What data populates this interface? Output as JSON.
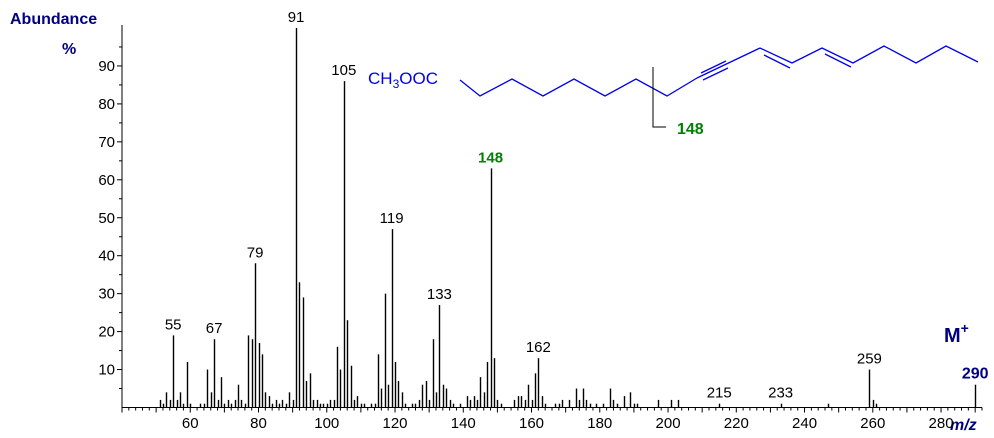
{
  "chart_data": {
    "type": "bar",
    "ylabel": "Abundance",
    "ylabel_unit": "%",
    "xlabel": "m/z",
    "xlim": [
      40,
      292
    ],
    "ylim": [
      0,
      100
    ],
    "y_ticks": [
      10,
      20,
      30,
      40,
      50,
      60,
      70,
      80,
      90
    ],
    "x_ticks": [
      60,
      80,
      100,
      120,
      140,
      160,
      180,
      200,
      220,
      240,
      260,
      280
    ],
    "colors": {
      "bars": "#000000",
      "axis_labels": "#000080",
      "highlight": "#008000",
      "structure": "#0000ee"
    },
    "peaks": [
      {
        "mz": 51,
        "rel": 2
      },
      {
        "mz": 52,
        "rel": 1
      },
      {
        "mz": 53,
        "rel": 4
      },
      {
        "mz": 54,
        "rel": 2
      },
      {
        "mz": 55,
        "rel": 19
      },
      {
        "mz": 56,
        "rel": 2
      },
      {
        "mz": 57,
        "rel": 4
      },
      {
        "mz": 58,
        "rel": 1
      },
      {
        "mz": 59,
        "rel": 12
      },
      {
        "mz": 60,
        "rel": 1
      },
      {
        "mz": 63,
        "rel": 1
      },
      {
        "mz": 64,
        "rel": 1
      },
      {
        "mz": 65,
        "rel": 10
      },
      {
        "mz": 66,
        "rel": 4
      },
      {
        "mz": 67,
        "rel": 18
      },
      {
        "mz": 68,
        "rel": 2
      },
      {
        "mz": 69,
        "rel": 8
      },
      {
        "mz": 70,
        "rel": 1
      },
      {
        "mz": 71,
        "rel": 2
      },
      {
        "mz": 72,
        "rel": 1
      },
      {
        "mz": 73,
        "rel": 2
      },
      {
        "mz": 74,
        "rel": 6
      },
      {
        "mz": 75,
        "rel": 2
      },
      {
        "mz": 76,
        "rel": 1
      },
      {
        "mz": 77,
        "rel": 19
      },
      {
        "mz": 78,
        "rel": 18
      },
      {
        "mz": 79,
        "rel": 38
      },
      {
        "mz": 80,
        "rel": 17
      },
      {
        "mz": 81,
        "rel": 14
      },
      {
        "mz": 82,
        "rel": 4
      },
      {
        "mz": 83,
        "rel": 3
      },
      {
        "mz": 84,
        "rel": 1
      },
      {
        "mz": 85,
        "rel": 2
      },
      {
        "mz": 86,
        "rel": 1
      },
      {
        "mz": 87,
        "rel": 2
      },
      {
        "mz": 88,
        "rel": 1
      },
      {
        "mz": 89,
        "rel": 4
      },
      {
        "mz": 90,
        "rel": 2
      },
      {
        "mz": 91,
        "rel": 100
      },
      {
        "mz": 92,
        "rel": 33
      },
      {
        "mz": 93,
        "rel": 29
      },
      {
        "mz": 94,
        "rel": 7
      },
      {
        "mz": 95,
        "rel": 9
      },
      {
        "mz": 96,
        "rel": 2
      },
      {
        "mz": 97,
        "rel": 2
      },
      {
        "mz": 98,
        "rel": 1
      },
      {
        "mz": 99,
        "rel": 1
      },
      {
        "mz": 100,
        "rel": 1
      },
      {
        "mz": 101,
        "rel": 2
      },
      {
        "mz": 102,
        "rel": 2
      },
      {
        "mz": 103,
        "rel": 16
      },
      {
        "mz": 104,
        "rel": 10
      },
      {
        "mz": 105,
        "rel": 86
      },
      {
        "mz": 106,
        "rel": 23
      },
      {
        "mz": 107,
        "rel": 11
      },
      {
        "mz": 108,
        "rel": 2
      },
      {
        "mz": 109,
        "rel": 3
      },
      {
        "mz": 110,
        "rel": 1
      },
      {
        "mz": 111,
        "rel": 1
      },
      {
        "mz": 113,
        "rel": 1
      },
      {
        "mz": 114,
        "rel": 1
      },
      {
        "mz": 115,
        "rel": 14
      },
      {
        "mz": 116,
        "rel": 5
      },
      {
        "mz": 117,
        "rel": 30
      },
      {
        "mz": 118,
        "rel": 6
      },
      {
        "mz": 119,
        "rel": 47
      },
      {
        "mz": 120,
        "rel": 12
      },
      {
        "mz": 121,
        "rel": 7
      },
      {
        "mz": 122,
        "rel": 4
      },
      {
        "mz": 123,
        "rel": 1
      },
      {
        "mz": 125,
        "rel": 1
      },
      {
        "mz": 126,
        "rel": 1
      },
      {
        "mz": 127,
        "rel": 2
      },
      {
        "mz": 128,
        "rel": 6
      },
      {
        "mz": 129,
        "rel": 7
      },
      {
        "mz": 130,
        "rel": 2
      },
      {
        "mz": 131,
        "rel": 18
      },
      {
        "mz": 132,
        "rel": 4
      },
      {
        "mz": 133,
        "rel": 27
      },
      {
        "mz": 134,
        "rel": 6
      },
      {
        "mz": 135,
        "rel": 5
      },
      {
        "mz": 136,
        "rel": 2
      },
      {
        "mz": 137,
        "rel": 1
      },
      {
        "mz": 139,
        "rel": 1
      },
      {
        "mz": 141,
        "rel": 3
      },
      {
        "mz": 142,
        "rel": 2
      },
      {
        "mz": 143,
        "rel": 3
      },
      {
        "mz": 144,
        "rel": 2
      },
      {
        "mz": 145,
        "rel": 8
      },
      {
        "mz": 146,
        "rel": 4
      },
      {
        "mz": 147,
        "rel": 12
      },
      {
        "mz": 148,
        "rel": 63
      },
      {
        "mz": 149,
        "rel": 13
      },
      {
        "mz": 150,
        "rel": 2
      },
      {
        "mz": 151,
        "rel": 1
      },
      {
        "mz": 155,
        "rel": 2
      },
      {
        "mz": 156,
        "rel": 3
      },
      {
        "mz": 157,
        "rel": 3
      },
      {
        "mz": 158,
        "rel": 2
      },
      {
        "mz": 159,
        "rel": 6
      },
      {
        "mz": 160,
        "rel": 2
      },
      {
        "mz": 161,
        "rel": 9
      },
      {
        "mz": 162,
        "rel": 13
      },
      {
        "mz": 163,
        "rel": 3
      },
      {
        "mz": 164,
        "rel": 1
      },
      {
        "mz": 167,
        "rel": 1
      },
      {
        "mz": 168,
        "rel": 1
      },
      {
        "mz": 169,
        "rel": 2
      },
      {
        "mz": 171,
        "rel": 2
      },
      {
        "mz": 173,
        "rel": 5
      },
      {
        "mz": 174,
        "rel": 2
      },
      {
        "mz": 175,
        "rel": 5
      },
      {
        "mz": 176,
        "rel": 2
      },
      {
        "mz": 177,
        "rel": 1
      },
      {
        "mz": 179,
        "rel": 1
      },
      {
        "mz": 181,
        "rel": 1
      },
      {
        "mz": 183,
        "rel": 5
      },
      {
        "mz": 184,
        "rel": 2
      },
      {
        "mz": 185,
        "rel": 1
      },
      {
        "mz": 187,
        "rel": 3
      },
      {
        "mz": 189,
        "rel": 4
      },
      {
        "mz": 190,
        "rel": 1
      },
      {
        "mz": 191,
        "rel": 1
      },
      {
        "mz": 197,
        "rel": 2
      },
      {
        "mz": 201,
        "rel": 2
      },
      {
        "mz": 203,
        "rel": 2
      },
      {
        "mz": 215,
        "rel": 1
      },
      {
        "mz": 233,
        "rel": 1
      },
      {
        "mz": 247,
        "rel": 1
      },
      {
        "mz": 259,
        "rel": 10
      },
      {
        "mz": 260,
        "rel": 2
      },
      {
        "mz": 261,
        "rel": 1
      },
      {
        "mz": 290,
        "rel": 6
      }
    ],
    "peak_labels": [
      {
        "mz": 55,
        "text": "55",
        "rel": 19
      },
      {
        "mz": 67,
        "text": "67",
        "rel": 18
      },
      {
        "mz": 79,
        "text": "79",
        "rel": 38
      },
      {
        "mz": 91,
        "text": "91",
        "rel": 100
      },
      {
        "mz": 105,
        "text": "105",
        "rel": 86
      },
      {
        "mz": 119,
        "text": "119",
        "rel": 47
      },
      {
        "mz": 133,
        "text": "133",
        "rel": 27
      },
      {
        "mz": 148,
        "text": "148",
        "rel": 63,
        "highlight": true
      },
      {
        "mz": 162,
        "text": "162",
        "rel": 13
      },
      {
        "mz": 215,
        "text": "215",
        "rel": 1
      },
      {
        "mz": 233,
        "text": "233",
        "rel": 1
      },
      {
        "mz": 259,
        "text": "259",
        "rel": 10
      },
      {
        "mz": 290,
        "text": "290",
        "rel": 6,
        "bold": true
      }
    ],
    "molecular_ion_label": "M",
    "molecular_ion_charge": "+",
    "structure": {
      "ester_prefix": "CH",
      "ester_subscript": "3",
      "ester_suffix": "OOC",
      "fragment_label": "148"
    }
  }
}
